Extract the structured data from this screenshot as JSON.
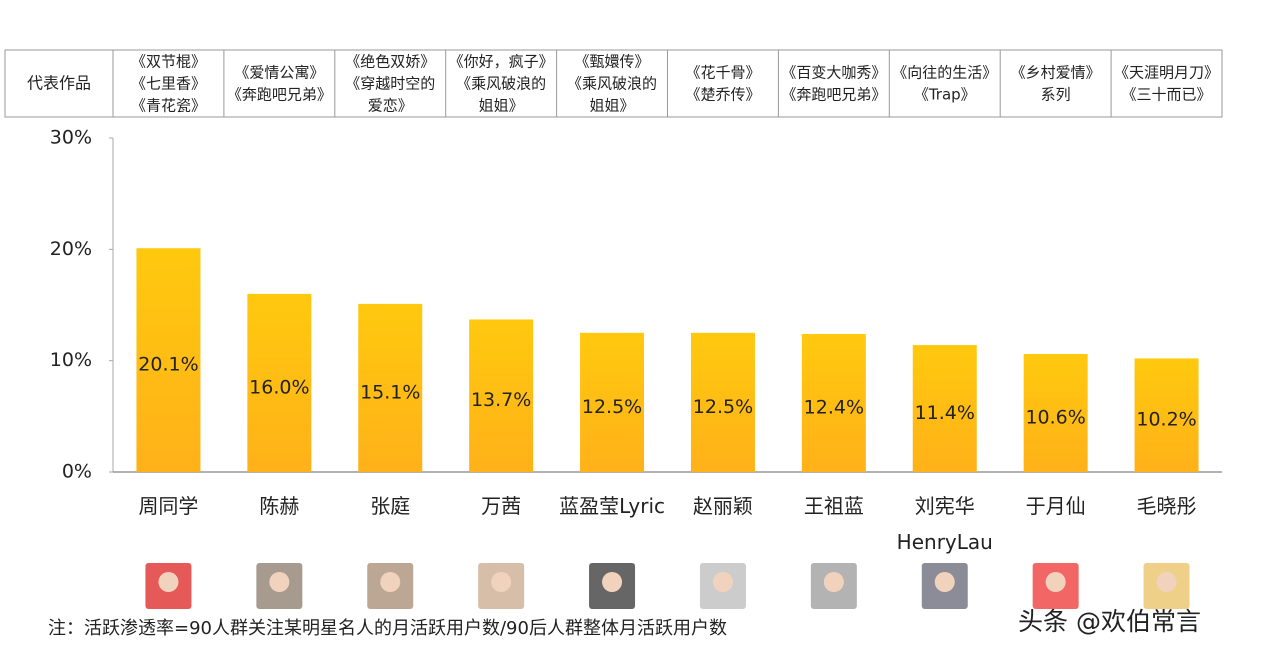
{
  "works_table": {
    "row_header": "代表作品",
    "works": [
      [
        "《双节棍》",
        "《七里香》",
        "《青花瓷》"
      ],
      [
        "《爱情公寓》",
        "《奔跑吧兄弟》"
      ],
      [
        "《绝色双娇》",
        "《穿越时空的",
        "爱恋》"
      ],
      [
        "《你好，疯子》",
        "《乘风破浪的",
        "姐姐》"
      ],
      [
        "《甄嬛传》",
        "《乘风破浪的",
        "姐姐》"
      ],
      [
        "《花千骨》",
        "《楚乔传》"
      ],
      [
        "《百变大咖秀》",
        "《奔跑吧兄弟》"
      ],
      [
        "《向往的生活》",
        "《Trap》"
      ],
      [
        "《乡村爱情》",
        "系列"
      ],
      [
        "《天涯明月刀》",
        "《三十而已》"
      ]
    ]
  },
  "chart_data": {
    "type": "bar",
    "categories": [
      "周同学",
      "陈赫",
      "张庭",
      "万茜",
      "蓝盈莹Lyric",
      "赵丽颖",
      "王祖蓝",
      "刘宪华\nHenryLau",
      "于月仙",
      "毛晓彤"
    ],
    "values": [
      20.1,
      16.0,
      15.1,
      13.7,
      12.5,
      12.5,
      12.4,
      11.4,
      10.6,
      10.2
    ],
    "value_labels": [
      "20.1%",
      "16.0%",
      "15.1%",
      "13.7%",
      "12.5%",
      "12.5%",
      "12.4%",
      "11.4%",
      "10.6%",
      "10.2%"
    ],
    "color": "#FFC90E",
    "ylim": [
      0,
      30
    ],
    "yticks": [
      {
        "value": 0,
        "label": "0%"
      },
      {
        "value": 10,
        "label": "10%"
      },
      {
        "value": 20,
        "label": "20%"
      },
      {
        "value": 30,
        "label": "30%"
      }
    ]
  },
  "note": "注：活跃渗透率=90人群关注某明星名人的月活跃用户数/90后人群整体月活跃用户数",
  "watermark": "头条 @欢伯常言"
}
